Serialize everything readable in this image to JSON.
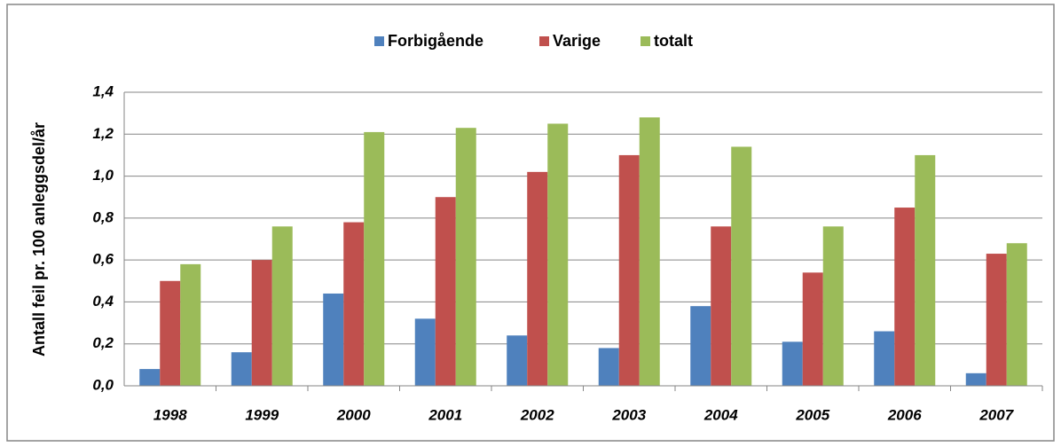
{
  "chart_data": {
    "type": "bar",
    "y_label": "Antall feil pr. 100 anleggsdel/år",
    "categories": [
      "1998",
      "1999",
      "2000",
      "2001",
      "2002",
      "2003",
      "2004",
      "2005",
      "2006",
      "2007"
    ],
    "series": [
      {
        "name": "Forbigående",
        "color": "#4f81bd",
        "values": [
          0.08,
          0.16,
          0.44,
          0.32,
          0.24,
          0.18,
          0.38,
          0.21,
          0.26,
          0.06
        ]
      },
      {
        "name": "Varige",
        "color": "#c0504d",
        "values": [
          0.5,
          0.6,
          0.78,
          0.9,
          1.02,
          1.1,
          0.76,
          0.54,
          0.85,
          0.63
        ]
      },
      {
        "name": "totalt",
        "color": "#9bbb59",
        "values": [
          0.58,
          0.76,
          1.21,
          1.23,
          1.25,
          1.28,
          1.14,
          0.76,
          1.1,
          0.68
        ]
      }
    ],
    "ylim": [
      0,
      1.4
    ],
    "yticks": [
      {
        "value": 0,
        "label": "0,0"
      },
      {
        "value": 0.2,
        "label": "0,2"
      },
      {
        "value": 0.4,
        "label": "0,4"
      },
      {
        "value": 0.6,
        "label": "0,6"
      },
      {
        "value": 0.8,
        "label": "0,8"
      },
      {
        "value": 1.0,
        "label": "1,0"
      },
      {
        "value": 1.2,
        "label": "1,2"
      },
      {
        "value": 1.4,
        "label": "1,4"
      }
    ],
    "grid": true,
    "legend": "top"
  }
}
